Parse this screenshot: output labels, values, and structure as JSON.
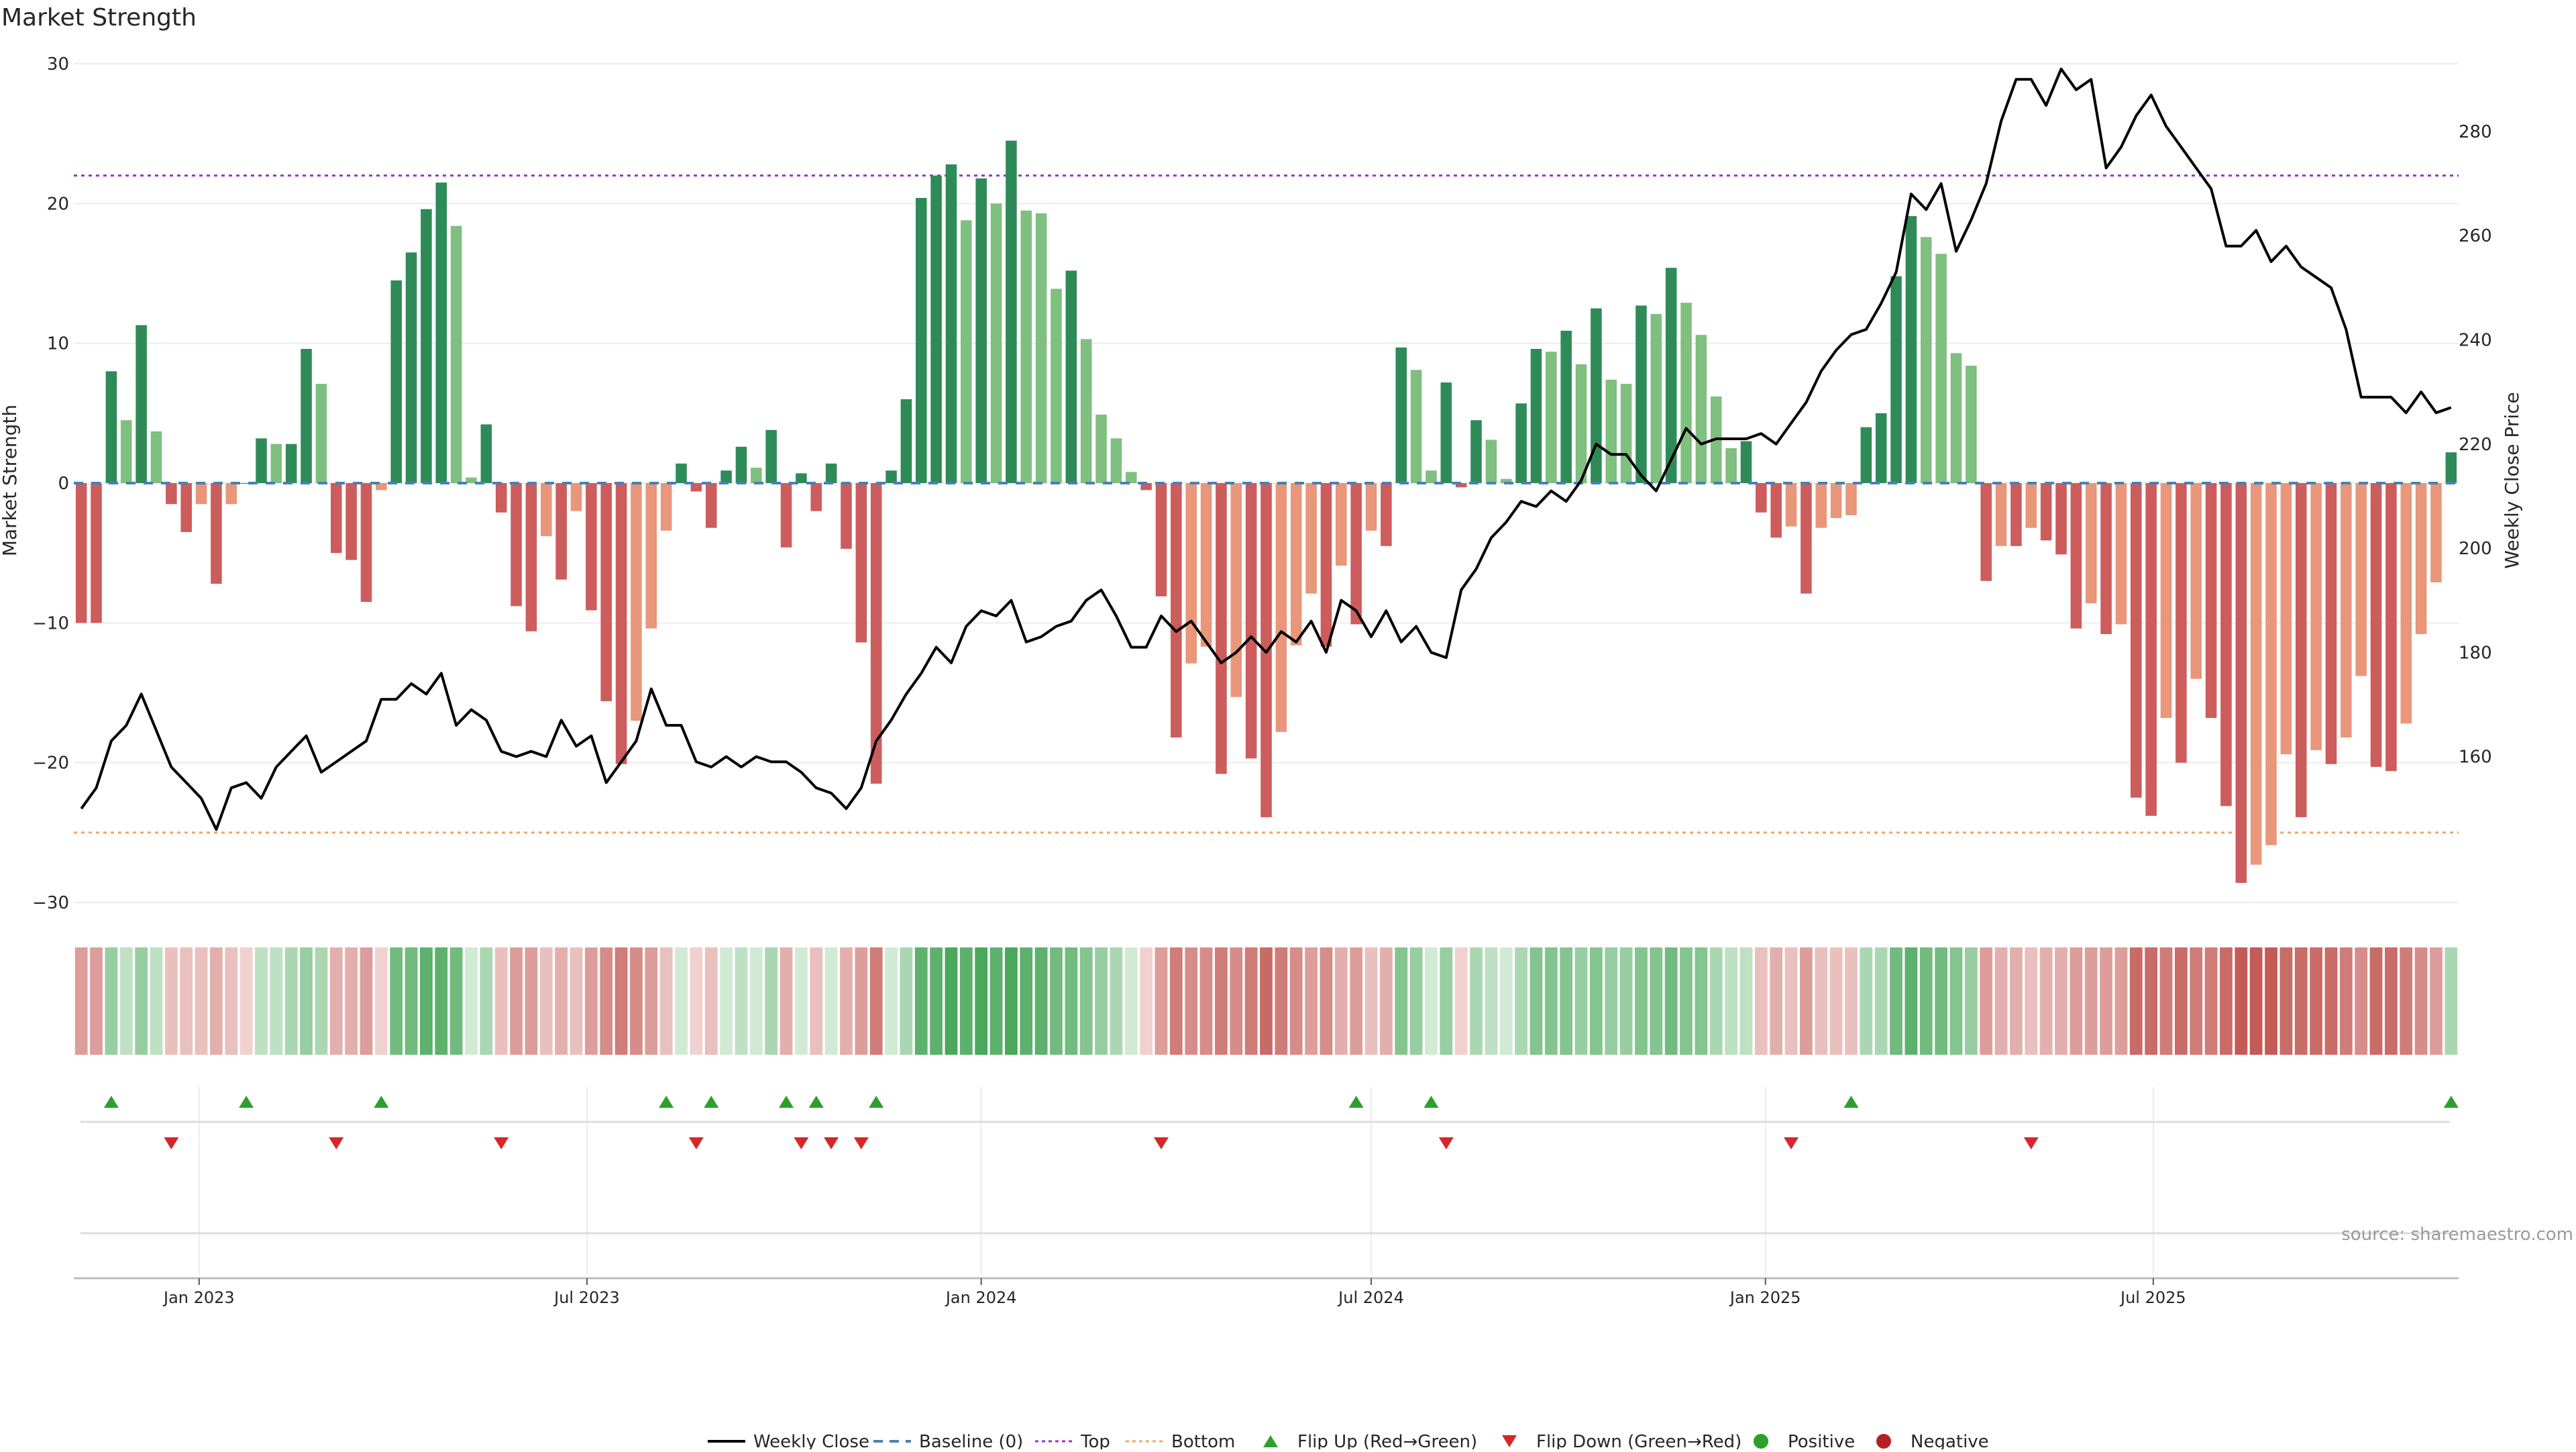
{
  "title": "Market Strength",
  "source_note": "source: sharemaestro.com",
  "colors": {
    "strong_green": "#2e8b57",
    "light_green": "#7fbf7f",
    "strong_red": "#cd5c5c",
    "light_red": "#e9967a",
    "close_line": "#000000",
    "baseline": "#4682b4",
    "top_line": "#9932cc",
    "bottom_line": "#f4a460",
    "flip_up": "#2ca02c",
    "flip_down": "#d62728",
    "positive_dot": "#2ca02c",
    "negative_dot": "#b22222"
  },
  "legend": [
    {
      "key": "close",
      "label": "Weekly Close"
    },
    {
      "key": "baseline",
      "label": "Baseline (0)"
    },
    {
      "key": "top",
      "label": "Top"
    },
    {
      "key": "bottom",
      "label": "Bottom"
    },
    {
      "key": "flip_up",
      "label": "Flip Up (Red→Green)"
    },
    {
      "key": "flip_down",
      "label": "Flip Down (Green→Red)"
    },
    {
      "key": "positive",
      "label": "Positive"
    },
    {
      "key": "negative",
      "label": "Negative"
    }
  ],
  "chart_data": {
    "type": "bar",
    "title": "Market Strength",
    "ylabel": "Market Strength",
    "y2label": "Weekly Close Price",
    "ylim": [
      -30,
      30
    ],
    "yticks": [
      "30",
      "20",
      "10",
      "0",
      "−10",
      "−20",
      "−30"
    ],
    "y2lim": [
      132,
      293
    ],
    "y2ticks": [
      "280",
      "260",
      "240",
      "220",
      "200",
      "180",
      "160"
    ],
    "top_level": 22,
    "bottom_level": -25,
    "x_start": "2022-11-07",
    "x_tick_labels": [
      {
        "date": "2023-01-01",
        "label": "Jan 2023"
      },
      {
        "date": "2023-07-01",
        "label": "Jul 2023"
      },
      {
        "date": "2024-01-01",
        "label": "Jan 2024"
      },
      {
        "date": "2024-07-01",
        "label": "Jul 2024"
      },
      {
        "date": "2025-01-01",
        "label": "Jan 2025"
      },
      {
        "date": "2025-07-01",
        "label": "Jul 2025"
      }
    ],
    "strength": [
      -10,
      -10,
      8,
      4.5,
      11.3,
      3.7,
      -1.5,
      -3.5,
      -1.5,
      -7.2,
      -1.5,
      0,
      3.2,
      2.8,
      2.8,
      9.6,
      7.1,
      -5,
      -5.5,
      -8.5,
      -0.5,
      14.5,
      16.5,
      19.6,
      21.5,
      18.4,
      0.4,
      4.2,
      -2.1,
      -8.8,
      -10.6,
      -3.8,
      -6.9,
      -2,
      -9.1,
      -15.6,
      -20.1,
      -17,
      -10.4,
      -3.4,
      1.4,
      -0.6,
      -3.2,
      0.9,
      2.6,
      1.1,
      3.8,
      -4.6,
      0.7,
      -2,
      1.4,
      -4.7,
      -11.4,
      -21.5,
      0.9,
      6,
      20.4,
      22,
      22.8,
      18.8,
      21.8,
      20,
      24.5,
      19.5,
      19.3,
      13.9,
      15.2,
      10.3,
      4.9,
      3.2,
      0.8,
      -0.5,
      -8.1,
      -18.2,
      -12.9,
      -11.7,
      -20.8,
      -15.3,
      -19.7,
      -23.9,
      -17.8,
      -11.6,
      -7.9,
      -11.7,
      -5.9,
      -10.1,
      -3.4,
      -4.5,
      9.7,
      8.1,
      0.9,
      7.2,
      -0.3,
      4.5,
      3.1,
      0.3,
      5.7,
      9.6,
      9.4,
      10.9,
      8.5,
      12.5,
      7.4,
      7.1,
      12.7,
      12.1,
      15.4,
      12.9,
      10.6,
      6.2,
      2.5,
      3,
      -2.1,
      -3.9,
      -3.1,
      -7.9,
      -3.2,
      -2.5,
      -2.3,
      4,
      5,
      14.8,
      19.1,
      17.6,
      16.4,
      9.3,
      8.4,
      -7,
      -4.5,
      -4.5,
      -3.2,
      -4.1,
      -5.1,
      -10.4,
      -8.6,
      -10.8,
      -10.1,
      -22.5,
      -23.8,
      -16.8,
      -20,
      -14,
      -16.8,
      -23.1,
      -28.6,
      -27.3,
      -25.9,
      -19.4,
      -23.9,
      -19.1,
      -20.1,
      -18.2,
      -13.8,
      -20.3,
      -20.6,
      -17.2,
      -10.8,
      -7.1,
      2.2
    ],
    "weekly_close": [
      150,
      154,
      163,
      166,
      172,
      165,
      158,
      155,
      152,
      146,
      154,
      155,
      152,
      158,
      161,
      164,
      157,
      159,
      161,
      163,
      171,
      171,
      174,
      172,
      176,
      166,
      169,
      167,
      161,
      160,
      161,
      160,
      167,
      162,
      164,
      155,
      159,
      163,
      173,
      166,
      166,
      159,
      158,
      160,
      158,
      160,
      159,
      159,
      157,
      154,
      153,
      150,
      154,
      163,
      167,
      172,
      176,
      181,
      178,
      185,
      188,
      187,
      190,
      182,
      183,
      185,
      186,
      190,
      192,
      187,
      181,
      181,
      187,
      184,
      186,
      182,
      178,
      180,
      183,
      180,
      184,
      182,
      186,
      180,
      190,
      188,
      183,
      188,
      182,
      185,
      180,
      179,
      192,
      196,
      202,
      205,
      209,
      208,
      211,
      209,
      213,
      220,
      218,
      218,
      214,
      211,
      217,
      223,
      220,
      221,
      221,
      221,
      222,
      220,
      224,
      228,
      234,
      238,
      241,
      242,
      247,
      253,
      268,
      265,
      270,
      257,
      263,
      270,
      282,
      290,
      290,
      285,
      292,
      288,
      290,
      273,
      277,
      283,
      287,
      281,
      277,
      273,
      269,
      258,
      258,
      261,
      255,
      258,
      254,
      252,
      250,
      242,
      229,
      229,
      229,
      226,
      230,
      226,
      227
    ],
    "sentiment": [
      -0.4,
      -0.4,
      0.4,
      0.2,
      0.4,
      0.2,
      -0.2,
      -0.2,
      -0.2,
      -0.3,
      -0.2,
      -0.1,
      0.2,
      0.2,
      0.3,
      0.4,
      0.3,
      -0.3,
      -0.3,
      -0.4,
      -0.1,
      0.6,
      0.6,
      0.7,
      0.7,
      0.6,
      0.1,
      0.3,
      -0.2,
      -0.4,
      -0.4,
      -0.2,
      -0.3,
      -0.2,
      -0.4,
      -0.5,
      -0.6,
      -0.5,
      -0.4,
      -0.2,
      0.1,
      -0.1,
      -0.2,
      0.1,
      0.2,
      0.1,
      0.3,
      -0.3,
      0.1,
      -0.2,
      0.1,
      -0.3,
      -0.4,
      -0.6,
      0.1,
      0.3,
      0.7,
      0.7,
      0.8,
      0.7,
      0.8,
      0.7,
      0.8,
      0.7,
      0.7,
      0.6,
      0.6,
      0.5,
      0.4,
      0.3,
      0.1,
      -0.1,
      -0.4,
      -0.6,
      -0.5,
      -0.5,
      -0.6,
      -0.5,
      -0.6,
      -0.7,
      -0.6,
      -0.5,
      -0.4,
      -0.5,
      -0.3,
      -0.4,
      -0.2,
      -0.3,
      0.5,
      0.4,
      0.1,
      0.4,
      -0.1,
      0.3,
      0.2,
      0.1,
      0.3,
      0.5,
      0.5,
      0.5,
      0.4,
      0.5,
      0.4,
      0.4,
      0.5,
      0.5,
      0.6,
      0.5,
      0.5,
      0.3,
      0.2,
      0.2,
      -0.2,
      -0.3,
      -0.2,
      -0.4,
      -0.2,
      -0.2,
      -0.2,
      0.3,
      0.3,
      0.6,
      0.7,
      0.6,
      0.6,
      0.5,
      0.4,
      -0.4,
      -0.3,
      -0.3,
      -0.2,
      -0.3,
      -0.3,
      -0.4,
      -0.4,
      -0.4,
      -0.4,
      -0.7,
      -0.7,
      -0.6,
      -0.7,
      -0.6,
      -0.6,
      -0.7,
      -0.8,
      -0.8,
      -0.8,
      -0.7,
      -0.7,
      -0.7,
      -0.7,
      -0.6,
      -0.5,
      -0.7,
      -0.7,
      -0.6,
      -0.5,
      -0.4,
      0.3
    ],
    "flip_up_dates": [
      "2022-11-21",
      "2023-01-23",
      "2023-03-27",
      "2023-08-07",
      "2023-08-28",
      "2023-10-02",
      "2023-10-16",
      "2023-11-13",
      "2024-06-24",
      "2024-07-29",
      "2025-02-10",
      "2025-11-17"
    ],
    "flip_down_dates": [
      "2022-12-19",
      "2023-03-06",
      "2023-05-22",
      "2023-08-21",
      "2023-10-09",
      "2023-10-23",
      "2023-11-06",
      "2024-03-25",
      "2024-08-05",
      "2025-01-13",
      "2025-05-05"
    ]
  }
}
